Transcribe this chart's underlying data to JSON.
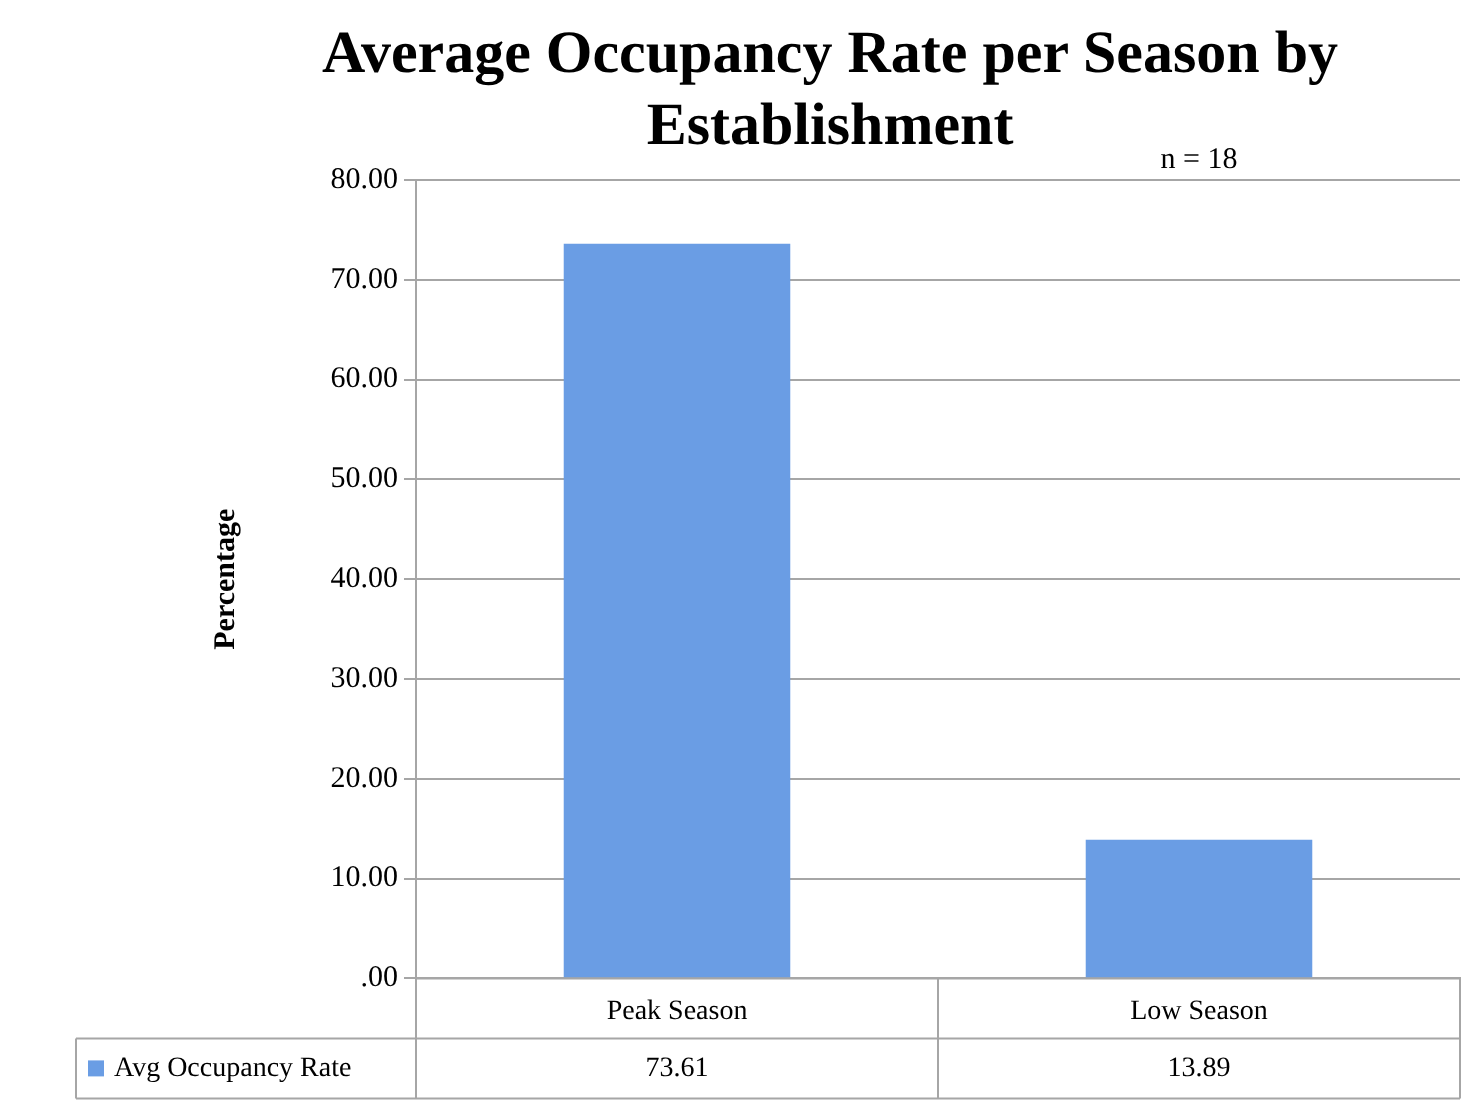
{
  "chart_data": {
    "type": "bar",
    "title": "Average Occupancy Rate per Season by Establishment",
    "ylabel": "Percentage",
    "annotations": [
      "n = 18"
    ],
    "categories": [
      "Peak Season",
      "Low Season"
    ],
    "series": [
      {
        "name": "Avg Occupancy Rate",
        "color": "#6a9de4",
        "values": [
          73.61,
          13.89
        ]
      }
    ],
    "ylim": [
      0,
      80
    ],
    "yticks": [
      {
        "value": 0,
        "label": ".00"
      },
      {
        "value": 10,
        "label": "10.00"
      },
      {
        "value": 20,
        "label": "20.00"
      },
      {
        "value": 30,
        "label": "30.00"
      },
      {
        "value": 40,
        "label": "40.00"
      },
      {
        "value": 50,
        "label": "50.00"
      },
      {
        "value": 60,
        "label": "60.00"
      },
      {
        "value": 70,
        "label": "70.00"
      },
      {
        "value": 80,
        "label": "80.00"
      }
    ],
    "grid": "y",
    "legend": "bottom",
    "data_labels": true
  }
}
